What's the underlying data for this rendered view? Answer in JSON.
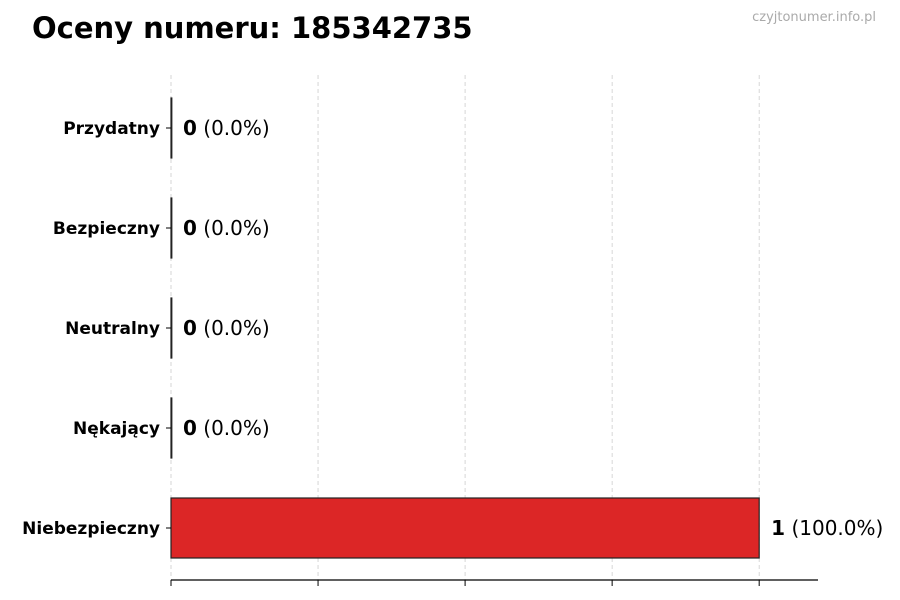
{
  "title": "Oceny numeru: 185342735",
  "watermark": "czyjtonumer.info.pl",
  "chart_data": {
    "type": "bar",
    "orientation": "horizontal",
    "title": "Oceny numeru: 185342735",
    "categories": [
      "Przydatny",
      "Bezpieczny",
      "Neutralny",
      "Nękający",
      "Niebezpieczny"
    ],
    "values": [
      0,
      0,
      0,
      0,
      1
    ],
    "labels": [
      {
        "count": "0",
        "pct": "(0.0%)"
      },
      {
        "count": "0",
        "pct": "(0.0%)"
      },
      {
        "count": "0",
        "pct": "(0.0%)"
      },
      {
        "count": "0",
        "pct": "(0.0%)"
      },
      {
        "count": "1",
        "pct": "(100.0%)"
      }
    ],
    "colors": [
      "#2ca02c",
      "#2ca02c",
      "#999999",
      "#e67e22",
      "#dc2626"
    ],
    "xlim": [
      0,
      1.1
    ],
    "xticks": [
      0,
      0.25,
      0.5,
      0.75,
      1.0
    ],
    "xtick_labels_shown": false,
    "grid": "x, dashed",
    "xlabel": "",
    "ylabel": ""
  }
}
